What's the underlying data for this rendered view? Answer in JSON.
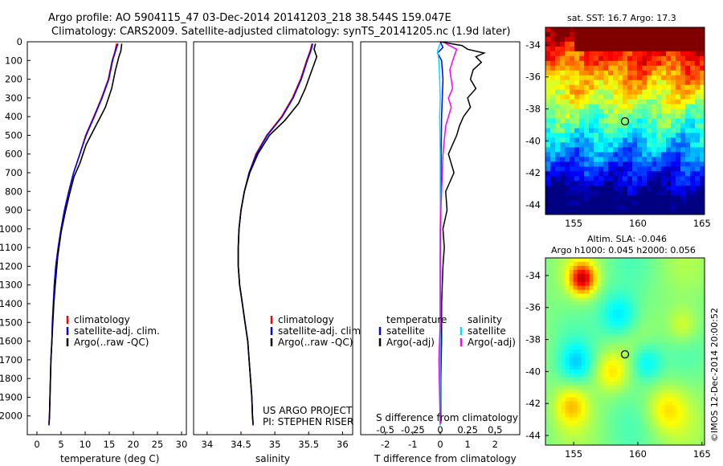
{
  "title": {
    "line1": "Argo profile: AO 5904115_47 03-Dec-2014 20141203_218 38.544S 159.047E",
    "line2": "Climatology: CARS2009. Satellite-adjusted climatology: synTS_20141205.nc (1.9d later)"
  },
  "colors": {
    "climatology": "#ff0000",
    "satellite_adj": "#0000ff",
    "argo": "#000000",
    "salinity_satellite": "#00e0ff",
    "salinity_argo": "#ff00ff"
  },
  "chart_data": [
    {
      "type": "line",
      "name": "temperature",
      "xlabel": "temperature (deg C)",
      "ylabel": "",
      "xlim": [
        -2,
        31
      ],
      "ylim": [
        2100,
        0
      ],
      "xticks": [
        0,
        5,
        10,
        15,
        20,
        25,
        30
      ],
      "yticks": [
        0,
        100,
        200,
        300,
        400,
        500,
        600,
        700,
        800,
        900,
        1000,
        1100,
        1200,
        1300,
        1400,
        1500,
        1600,
        1700,
        1800,
        1900,
        2000
      ],
      "legend": [
        "climatology",
        "satellite-adj. clim.",
        "Argo(..raw -QC)"
      ],
      "series": [
        {
          "name": "climatology",
          "color": "#ff0000",
          "points": [
            [
              16.5,
              10
            ],
            [
              16.2,
              50
            ],
            [
              15.6,
              100
            ],
            [
              14.8,
              200
            ],
            [
              13.4,
              300
            ],
            [
              11.8,
              400
            ],
            [
              10.1,
              500
            ],
            [
              8.9,
              600
            ],
            [
              7.6,
              700
            ],
            [
              6.6,
              800
            ],
            [
              5.7,
              900
            ],
            [
              5.0,
              1000
            ],
            [
              4.4,
              1100
            ],
            [
              3.9,
              1200
            ],
            [
              3.6,
              1300
            ],
            [
              3.4,
              1400
            ],
            [
              3.2,
              1500
            ],
            [
              3.1,
              1600
            ],
            [
              2.9,
              1700
            ],
            [
              2.8,
              1800
            ],
            [
              2.7,
              1900
            ],
            [
              2.6,
              2000
            ],
            [
              2.5,
              2050
            ]
          ]
        },
        {
          "name": "satellite-adj. clim.",
          "color": "#0000ff",
          "points": [
            [
              16.8,
              10
            ],
            [
              16.3,
              50
            ],
            [
              15.7,
              100
            ],
            [
              14.9,
              200
            ],
            [
              13.5,
              300
            ],
            [
              11.9,
              400
            ],
            [
              10.2,
              500
            ],
            [
              8.9,
              600
            ],
            [
              7.6,
              700
            ],
            [
              6.6,
              800
            ],
            [
              5.7,
              900
            ],
            [
              5.0,
              1000
            ],
            [
              4.4,
              1100
            ],
            [
              3.9,
              1200
            ],
            [
              3.6,
              1300
            ],
            [
              3.4,
              1400
            ],
            [
              3.2,
              1500
            ],
            [
              3.1,
              1600
            ],
            [
              2.9,
              1700
            ],
            [
              2.8,
              1800
            ],
            [
              2.7,
              1900
            ],
            [
              2.6,
              2000
            ],
            [
              2.5,
              2050
            ]
          ]
        },
        {
          "name": "Argo(..raw -QC)",
          "color": "#000000",
          "points": [
            [
              17.6,
              10
            ],
            [
              17.4,
              50
            ],
            [
              17.0,
              80
            ],
            [
              16.3,
              150
            ],
            [
              15.5,
              250
            ],
            [
              14.2,
              350
            ],
            [
              12.2,
              450
            ],
            [
              10.2,
              550
            ],
            [
              8.9,
              650
            ],
            [
              7.7,
              720
            ],
            [
              6.7,
              820
            ],
            [
              5.8,
              920
            ],
            [
              5.0,
              1020
            ],
            [
              4.3,
              1150
            ],
            [
              3.8,
              1300
            ],
            [
              3.5,
              1400
            ],
            [
              3.3,
              1500
            ],
            [
              3.1,
              1600
            ],
            [
              2.9,
              1700
            ],
            [
              2.8,
              1800
            ],
            [
              2.7,
              1900
            ],
            [
              2.6,
              2000
            ],
            [
              2.5,
              2040
            ]
          ]
        }
      ]
    },
    {
      "type": "line",
      "name": "salinity",
      "xlabel": "salinity",
      "xlim": [
        33.8,
        36.15
      ],
      "ylim": [
        2100,
        0
      ],
      "xticks": [
        34,
        34.5,
        35,
        35.5,
        36
      ],
      "legend": [
        "climatology",
        "satellite-adj. clim.",
        "Argo(..raw -QC)"
      ],
      "annotation": [
        "US ARGO PROJECT",
        "PI: STEPHEN RISER"
      ],
      "series": [
        {
          "name": "climatology",
          "color": "#ff0000",
          "points": [
            [
              35.55,
              10
            ],
            [
              35.52,
              50
            ],
            [
              35.47,
              100
            ],
            [
              35.38,
              200
            ],
            [
              35.26,
              300
            ],
            [
              35.1,
              400
            ],
            [
              34.88,
              500
            ],
            [
              34.72,
              600
            ],
            [
              34.62,
              700
            ],
            [
              34.55,
              800
            ],
            [
              34.5,
              900
            ],
            [
              34.47,
              1000
            ],
            [
              34.46,
              1100
            ],
            [
              34.46,
              1200
            ],
            [
              34.48,
              1300
            ],
            [
              34.52,
              1400
            ],
            [
              34.56,
              1500
            ],
            [
              34.6,
              1600
            ],
            [
              34.62,
              1700
            ],
            [
              34.64,
              1800
            ],
            [
              34.66,
              1900
            ],
            [
              34.67,
              2000
            ],
            [
              34.68,
              2050
            ]
          ]
        },
        {
          "name": "satellite-adj. clim.",
          "color": "#0000ff",
          "points": [
            [
              35.56,
              10
            ],
            [
              35.53,
              50
            ],
            [
              35.48,
              100
            ],
            [
              35.39,
              200
            ],
            [
              35.27,
              300
            ],
            [
              35.11,
              400
            ],
            [
              34.89,
              500
            ],
            [
              34.73,
              600
            ],
            [
              34.62,
              700
            ],
            [
              34.55,
              800
            ],
            [
              34.5,
              900
            ],
            [
              34.47,
              1000
            ],
            [
              34.46,
              1100
            ],
            [
              34.46,
              1200
            ],
            [
              34.48,
              1300
            ],
            [
              34.52,
              1400
            ],
            [
              34.56,
              1500
            ],
            [
              34.6,
              1600
            ],
            [
              34.62,
              1700
            ],
            [
              34.64,
              1800
            ],
            [
              34.66,
              1900
            ],
            [
              34.67,
              2000
            ],
            [
              34.68,
              2050
            ]
          ]
        },
        {
          "name": "Argo(..raw -QC)",
          "color": "#000000",
          "points": [
            [
              35.6,
              10
            ],
            [
              35.58,
              40
            ],
            [
              35.62,
              80
            ],
            [
              35.55,
              150
            ],
            [
              35.45,
              250
            ],
            [
              35.35,
              330
            ],
            [
              35.15,
              420
            ],
            [
              34.92,
              500
            ],
            [
              34.75,
              600
            ],
            [
              34.63,
              700
            ],
            [
              34.55,
              800
            ],
            [
              34.5,
              900
            ],
            [
              34.47,
              1000
            ],
            [
              34.46,
              1100
            ],
            [
              34.46,
              1200
            ],
            [
              34.48,
              1300
            ],
            [
              34.52,
              1400
            ],
            [
              34.56,
              1500
            ],
            [
              34.6,
              1600
            ],
            [
              34.62,
              1700
            ],
            [
              34.64,
              1800
            ],
            [
              34.66,
              1900
            ],
            [
              34.67,
              2000
            ],
            [
              34.68,
              2040
            ]
          ]
        }
      ]
    },
    {
      "type": "line",
      "name": "difference from climatology",
      "xlabel": "T difference from climatology",
      "xlabel_top": "S difference from climatology",
      "xlim": [
        -2.9,
        2.9
      ],
      "ylim": [
        2100,
        0
      ],
      "xticks": [
        -2,
        -1,
        0,
        1,
        2
      ],
      "xticks_s": [
        -0.5,
        -0.25,
        0,
        0.25,
        0.5
      ],
      "legend_t_title": "temperature",
      "legend_s_title": "salinity",
      "legend": [
        "satellite",
        "Argo(-adj)",
        "satellite",
        "Argo(-adj)"
      ],
      "series": [
        {
          "name": "temperature satellite",
          "color": "#0000ff",
          "points": [
            [
              0,
              0
            ],
            [
              0.1,
              30
            ],
            [
              -0.1,
              60
            ],
            [
              0.05,
              100
            ],
            [
              0.1,
              200
            ],
            [
              0.05,
              400
            ],
            [
              0.02,
              800
            ],
            [
              0,
              1200
            ],
            [
              0,
              1600
            ],
            [
              0,
              2050
            ]
          ]
        },
        {
          "name": "temperature Argo(-adj)",
          "color": "#000000",
          "points": [
            [
              0,
              0
            ],
            [
              0.8,
              20
            ],
            [
              1.0,
              40
            ],
            [
              1.6,
              60
            ],
            [
              1.3,
              80
            ],
            [
              1.5,
              110
            ],
            [
              1.2,
              150
            ],
            [
              1.1,
              200
            ],
            [
              1.3,
              250
            ],
            [
              1.0,
              300
            ],
            [
              1.1,
              350
            ],
            [
              0.85,
              400
            ],
            [
              0.7,
              450
            ],
            [
              0.6,
              500
            ],
            [
              0.3,
              600
            ],
            [
              0.5,
              700
            ],
            [
              0.2,
              800
            ],
            [
              0.25,
              900
            ],
            [
              0.1,
              1000
            ],
            [
              0.15,
              1100
            ],
            [
              0.1,
              1200
            ],
            [
              0.05,
              1400
            ],
            [
              0.05,
              1600
            ],
            [
              0.02,
              1800
            ],
            [
              0.02,
              2040
            ]
          ]
        },
        {
          "name": "salinity satellite",
          "color": "#00e0ff",
          "points": [
            [
              0,
              10
            ],
            [
              -0.1,
              50
            ],
            [
              -0.05,
              100
            ],
            [
              -0.02,
              200
            ],
            [
              0,
              300
            ],
            [
              -0.02,
              400
            ],
            [
              0,
              600
            ],
            [
              0,
              1000
            ],
            [
              0,
              2050
            ]
          ]
        },
        {
          "name": "salinity Argo(-adj)",
          "color": "#ff00ff",
          "points": [
            [
              0.2,
              10
            ],
            [
              0.6,
              40
            ],
            [
              0.5,
              80
            ],
            [
              0.35,
              150
            ],
            [
              0.45,
              250
            ],
            [
              0.3,
              300
            ],
            [
              0.4,
              350
            ],
            [
              0.2,
              450
            ],
            [
              0.1,
              600
            ],
            [
              0.05,
              800
            ],
            [
              0,
              1000
            ],
            [
              0,
              1200
            ],
            [
              0,
              1500
            ],
            [
              -0.05,
              1700
            ],
            [
              0,
              2040
            ]
          ]
        }
      ]
    },
    {
      "type": "heatmap",
      "title": "sat. SST: 16.7  Argo: 17.3",
      "xlim": [
        152.8,
        165.2
      ],
      "ylim": [
        -44.6,
        -32.9
      ],
      "xticks": [
        155,
        160,
        165
      ],
      "yticks": [
        -34,
        -36,
        -38,
        -40,
        -42,
        -44
      ],
      "marker": {
        "lon": 159.047,
        "lat": -38.544
      }
    },
    {
      "type": "heatmap",
      "title_line1": "Altim. SLA: -0.046",
      "title_line2": "Argo h1000: 0.045 h2000: 0.056",
      "xlim": [
        152.8,
        165.2
      ],
      "ylim": [
        -44.6,
        -32.9
      ],
      "xticks": [
        155,
        160,
        165
      ],
      "yticks": [
        -34,
        -36,
        -38,
        -40,
        -42,
        -44
      ],
      "marker": {
        "lon": 159.047,
        "lat": -38.544
      }
    }
  ],
  "side_label": "©IMOS 12-Dec-2014 20:00:52"
}
